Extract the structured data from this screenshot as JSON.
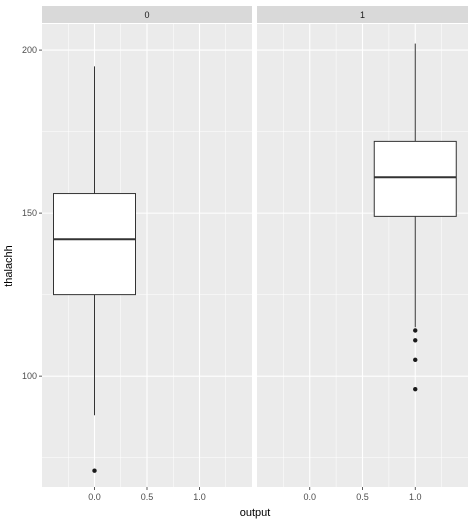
{
  "chart_data": {
    "type": "boxplot",
    "xlabel": "output",
    "ylabel": "thalachh",
    "x_ticks": [
      0.0,
      0.5,
      1.0
    ],
    "x_tick_labels": [
      "0.0",
      "0.5",
      "1.0"
    ],
    "xlim": [
      -0.5,
      1.5
    ],
    "y_ticks": [
      100,
      150,
      200
    ],
    "y_tick_labels": [
      "100",
      "150",
      "200"
    ],
    "ylim": [
      66,
      208
    ],
    "grid": true,
    "facets": [
      {
        "label": "0",
        "box": {
          "x": 0.0,
          "q1": 125,
          "median": 142,
          "q3": 156,
          "whisker_low": 88,
          "whisker_high": 195
        },
        "outliers": [
          71
        ]
      },
      {
        "label": "1",
        "box": {
          "x": 1.0,
          "q1": 149,
          "median": 161,
          "q3": 172,
          "whisker_low": 115,
          "whisker_high": 202
        },
        "outliers": [
          114,
          111,
          105,
          96
        ]
      }
    ],
    "colors": {
      "panel_bg": "#ebebeb",
      "strip_bg": "#d9d9d9",
      "grid_major": "#ffffff",
      "box_fill": "#ffffff",
      "box_line": "#333333",
      "outlier": "#1a1a1a"
    }
  }
}
